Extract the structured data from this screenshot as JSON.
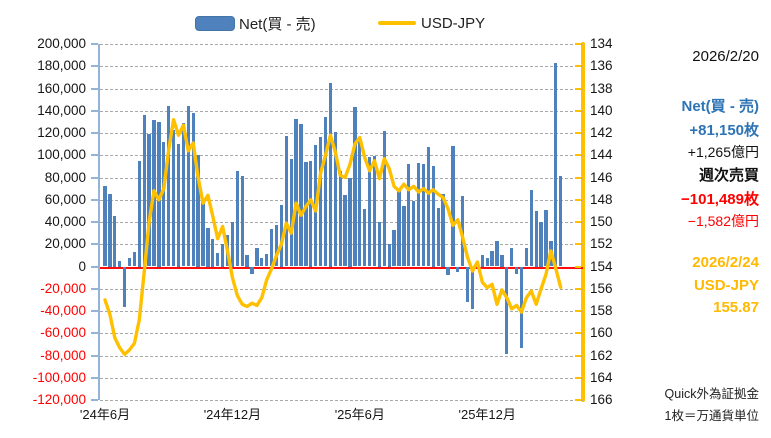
{
  "legend": {
    "net_label": "Net(買 - 売)",
    "usdjpy_label": "USD-JPY"
  },
  "panel": {
    "net_date": "2026/2/20",
    "net_title": "Net(買 - 売)",
    "net_lots": "+81,150枚",
    "net_amount": "+1,265億円",
    "weekly_title": "週次売買",
    "weekly_lots": "−101,489枚",
    "weekly_amount": "−1,582億円",
    "fx_date": "2026/2/24",
    "fx_pair": "USD-JPY",
    "fx_price": "155.87",
    "note1": "Quick外為証拠金",
    "note2": "1枚＝万通貨単位"
  },
  "colors": {
    "bar": "#4F81BD",
    "line": "#FFC000",
    "zero_line": "#FF0000",
    "grid": "#a8a8a8",
    "left_axis": "#95B3D7",
    "negative_label": "#FF0000",
    "blue_text": "#2E74B5",
    "gold_text": "#FFB900"
  },
  "chart_data": {
    "type": "bar",
    "subtype": "bar+line combo, weekly data from June 2024 to Feb 2026",
    "title": "",
    "left_axis": {
      "min": -120000,
      "max": 200000,
      "step": 20000,
      "tick_labels": [
        "200,000",
        "180,000",
        "160,000",
        "140,000",
        "120,000",
        "100,000",
        "80,000",
        "60,000",
        "40,000",
        "20,000",
        "0",
        "-20,000",
        "-40,000",
        "-60,000",
        "-80,000",
        "-100,000",
        "-120,000"
      ]
    },
    "right_axis": {
      "min": 134,
      "max": 166,
      "step": 2,
      "inverted": true,
      "tick_labels": [
        "134",
        "136",
        "138",
        "140",
        "142",
        "144",
        "146",
        "148",
        "150",
        "152",
        "154",
        "156",
        "158",
        "160",
        "162",
        "164",
        "166"
      ]
    },
    "x_axis": {
      "tick_labels": [
        "'24年6月",
        "'24年12月",
        "'25年6月",
        "'25年12月"
      ],
      "tick_week_index": [
        0,
        26,
        52,
        78
      ]
    },
    "zero_line_value": 0,
    "series": [
      {
        "name": "Net(買 - 売)",
        "type": "bar",
        "axis": "left",
        "color": "#4F81BD",
        "values": [
          72000,
          65000,
          45000,
          5000,
          -36000,
          8000,
          13000,
          95000,
          136000,
          119000,
          132000,
          130000,
          112000,
          144000,
          123000,
          110000,
          129000,
          144000,
          138000,
          100000,
          61000,
          35000,
          25000,
          12000,
          20000,
          28000,
          40000,
          86000,
          81000,
          10000,
          -7000,
          17000,
          8000,
          11000,
          34000,
          37000,
          55000,
          117000,
          97000,
          133000,
          128000,
          94000,
          95000,
          109000,
          116000,
          134000,
          165000,
          121000,
          86000,
          64000,
          80000,
          143000,
          116000,
          52000,
          98000,
          99000,
          40000,
          122000,
          20000,
          33000,
          71000,
          54000,
          92000,
          59000,
          93000,
          92000,
          107000,
          90000,
          53000,
          65000,
          -8000,
          108000,
          -5000,
          63000,
          -32000,
          -38000,
          5000,
          10000,
          8000,
          14000,
          23000,
          10000,
          -79000,
          17000,
          -7000,
          -73000,
          17000,
          69000,
          50000,
          40000,
          51000,
          23000,
          182639,
          81150
        ]
      },
      {
        "name": "USD-JPY",
        "type": "line",
        "axis": "right",
        "color": "#FFC000",
        "values": [
          157.0,
          158.3,
          160.4,
          161.3,
          161.9,
          161.5,
          160.9,
          158.8,
          154.5,
          150.0,
          147.2,
          148.0,
          147.0,
          143.5,
          140.8,
          142.2,
          141.3,
          143.6,
          142.9,
          146.0,
          148.3,
          147.6,
          149.5,
          151.5,
          150.4,
          152.6,
          155.0,
          156.6,
          157.4,
          157.6,
          157.3,
          157.5,
          156.8,
          155.2,
          154.2,
          153.0,
          152.0,
          150.1,
          151.0,
          148.3,
          149.4,
          148.6,
          148.0,
          149.0,
          145.6,
          144.0,
          142.2,
          143.7,
          145.8,
          146.0,
          144.8,
          143.0,
          142.4,
          144.2,
          145.4,
          144.5,
          146.1,
          144.3,
          145.2,
          146.8,
          147.2,
          146.6,
          147.1,
          146.8,
          147.3,
          147.0,
          147.4,
          147.1,
          147.5,
          147.8,
          148.8,
          150.3,
          149.8,
          151.4,
          153.2,
          154.4,
          153.6,
          155.4,
          155.9,
          155.6,
          157.4,
          156.1,
          156.8,
          157.8,
          157.5,
          158.1,
          156.8,
          156.2,
          157.4,
          156.0,
          154.7,
          152.6,
          154.2,
          155.87
        ]
      }
    ]
  }
}
